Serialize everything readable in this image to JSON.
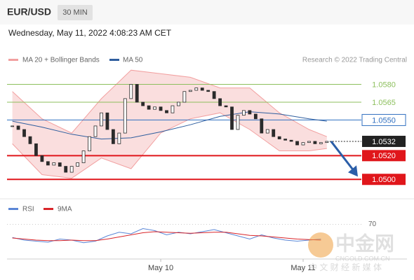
{
  "chart_data": {
    "type": "candlestick",
    "title": "EUR/USD",
    "timeframe": "30 MIN",
    "timestamp": "Wednesday, May 11, 2022 4:08:23 AM CET",
    "source": "Research © 2022 Trading Central",
    "candle_color": "#2b2b2b",
    "x": [
      -25,
      -24,
      -23,
      -22,
      -21,
      -20,
      -19,
      -18,
      -17,
      -16,
      -15,
      -14,
      -13,
      -12,
      -11,
      -10,
      -9,
      -8,
      -7,
      -6,
      -5,
      -4,
      -3,
      -2,
      -1,
      0,
      1,
      2,
      3,
      4,
      5,
      6,
      7,
      8,
      9,
      10,
      11,
      12,
      13,
      14,
      15,
      16,
      17,
      18,
      19,
      20,
      21,
      22,
      23,
      24,
      25,
      26,
      27,
      28
    ],
    "closes": [
      1.0545,
      1.0542,
      1.0536,
      1.053,
      1.052,
      1.0515,
      1.0512,
      1.0514,
      1.0511,
      1.0506,
      1.0511,
      1.0514,
      1.0524,
      1.0536,
      1.0545,
      1.0556,
      1.0542,
      1.053,
      1.0539,
      1.0568,
      1.058,
      1.0565,
      1.0562,
      1.0559,
      1.0561,
      1.0558,
      1.0556,
      1.0562,
      1.0565,
      1.0574,
      1.0575,
      1.0577,
      1.0575,
      1.0574,
      1.0568,
      1.0562,
      1.0561,
      1.0542,
      1.0554,
      1.0558,
      1.0555,
      1.0551,
      1.0539,
      1.0542,
      1.0536,
      1.0534,
      1.0533,
      1.0532,
      1.0529,
      1.0531,
      1.0532,
      1.053,
      1.0531,
      1.0532
    ],
    "xlim": [
      -25.9,
      41.5
    ],
    "xticks": [
      {
        "value": 0,
        "label": "May 10"
      },
      {
        "value": 24,
        "label": "May 11"
      }
    ],
    "ylim": [
      1.0486,
      1.0598
    ],
    "bands": {
      "name": "MA 20 + Bollinger Bands",
      "color": "#f2a0a0",
      "x": [
        -25,
        -20,
        -15,
        -10,
        -5,
        0,
        5,
        10,
        15,
        20,
        25,
        28
      ],
      "upper": [
        1.0574,
        1.0551,
        1.0539,
        1.0568,
        1.0592,
        1.0589,
        1.0586,
        1.0577,
        1.0577,
        1.0556,
        1.0542,
        1.0536
      ],
      "lower": [
        1.053,
        1.0504,
        1.0501,
        1.0518,
        1.0509,
        1.0539,
        1.0551,
        1.0556,
        1.0542,
        1.0524,
        1.0524,
        1.0526
      ]
    },
    "ma50": {
      "name": "MA 50",
      "color": "#2f5e9e",
      "x": [
        -25,
        -20,
        -15,
        -10,
        -5,
        0,
        5,
        10,
        15,
        20,
        25,
        28
      ],
      "values": [
        1.0549,
        1.0544,
        1.0538,
        1.0534,
        1.0535,
        1.054,
        1.0546,
        1.0553,
        1.0557,
        1.0555,
        1.0551,
        1.0549
      ]
    },
    "levels": [
      {
        "value": 1.058,
        "label": "1.0580",
        "color": "#8cbf5c",
        "box": false
      },
      {
        "value": 1.0565,
        "label": "1.0565",
        "color": "#8cbf5c",
        "box": false
      },
      {
        "value": 1.055,
        "label": "1.0550",
        "color": "#2f6fc0",
        "box": false
      },
      {
        "value": 1.0532,
        "label": "1.0532",
        "color": "#222222",
        "box": true
      },
      {
        "value": 1.052,
        "label": "1.0520",
        "color": "#e0161b",
        "box": true
      },
      {
        "value": 1.05,
        "label": "1.0500",
        "color": "#e0161b",
        "box": true
      }
    ],
    "rsi": {
      "ylim": [
        0,
        100
      ],
      "yticks": [
        70
      ],
      "x": [
        -25,
        -23,
        -21,
        -19,
        -17,
        -15,
        -13,
        -11,
        -9,
        -7,
        -5,
        -3,
        -1,
        1,
        3,
        5,
        7,
        9,
        11,
        13,
        15,
        17,
        19,
        21,
        23,
        25,
        27
      ],
      "series": [
        {
          "name": "RSI",
          "color": "#5a86d6",
          "values": [
            45,
            40,
            38,
            36,
            42,
            40,
            35,
            38,
            48,
            55,
            52,
            62,
            58,
            50,
            55,
            52,
            56,
            60,
            54,
            48,
            42,
            50,
            44,
            40,
            38,
            40,
            42
          ]
        },
        {
          "name": "9MA",
          "color": "#d9252a",
          "values": [
            44,
            42,
            40,
            39,
            39,
            40,
            39,
            39,
            42,
            46,
            50,
            54,
            56,
            55,
            54,
            53,
            54,
            55,
            55,
            52,
            49,
            48,
            46,
            44,
            42,
            41,
            40
          ]
        }
      ]
    }
  },
  "watermark": {
    "logo": "中金网",
    "site": "CNGOLD.COM.CN",
    "tagline": "中 文 财 经 新 媒 体"
  }
}
